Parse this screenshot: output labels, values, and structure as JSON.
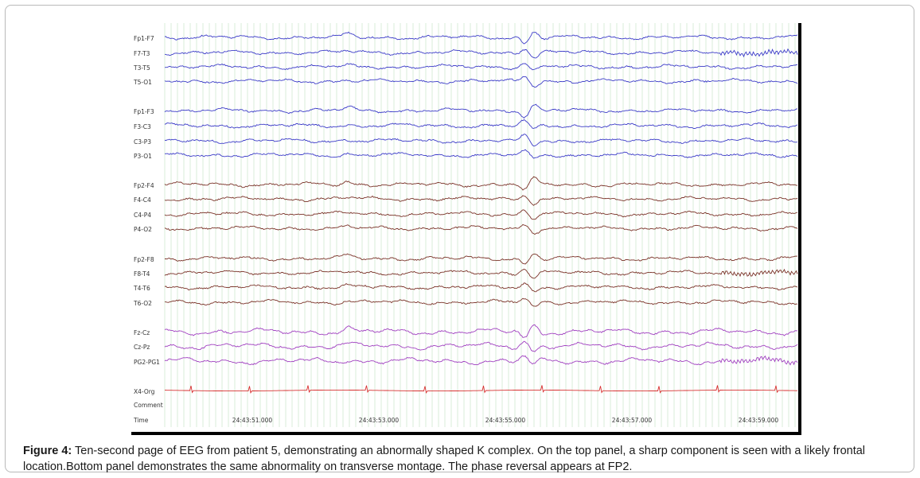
{
  "figure": {
    "caption_lead": "Figure 4:",
    "caption_text": " Ten-second page of EEG from patient 5, demonstrating an abnormally shaped K complex. On the top panel, a sharp component is seen with a likely frontal location.Bottom panel demonstrates the same abnormality on transverse montage. The phase reversal appears at FP2."
  },
  "eeg": {
    "channels": [
      {
        "label": "Fp1-F7",
        "color": "#3c3cc8",
        "group": 1
      },
      {
        "label": "F7-T3",
        "color": "#3c3cc8",
        "group": 1
      },
      {
        "label": "T3-T5",
        "color": "#3c3cc8",
        "group": 1
      },
      {
        "label": "T5-O1",
        "color": "#3c3cc8",
        "group": 1
      },
      {
        "label": "Fp1-F3",
        "color": "#3c3cc8",
        "group": 2
      },
      {
        "label": "F3-C3",
        "color": "#3c3cc8",
        "group": 2
      },
      {
        "label": "C3-P3",
        "color": "#3c3cc8",
        "group": 2
      },
      {
        "label": "P3-O1",
        "color": "#3c3cc8",
        "group": 2
      },
      {
        "label": "Fp2-F4",
        "color": "#7a3328",
        "group": 3
      },
      {
        "label": "F4-C4",
        "color": "#7a3328",
        "group": 3
      },
      {
        "label": "C4-P4",
        "color": "#7a3328",
        "group": 3
      },
      {
        "label": "P4-O2",
        "color": "#7a3328",
        "group": 3
      },
      {
        "label": "Fp2-F8",
        "color": "#7a3328",
        "group": 4
      },
      {
        "label": "F8-T4",
        "color": "#7a3328",
        "group": 4
      },
      {
        "label": "T4-T6",
        "color": "#7a3328",
        "group": 4
      },
      {
        "label": "T6-O2",
        "color": "#7a3328",
        "group": 4
      },
      {
        "label": "Fz-Cz",
        "color": "#a040c0",
        "group": 5
      },
      {
        "label": "Cz-Pz",
        "color": "#a040c0",
        "group": 5
      },
      {
        "label": "PG2-PG1",
        "color": "#a040c0",
        "group": 5
      },
      {
        "label": "X4-Org",
        "color": "#d83030",
        "group": 6
      }
    ],
    "extra_labels": [
      "Comment",
      "Time"
    ],
    "time_labels": [
      "24:43:51.000",
      "24:43:53.000",
      "24:43:55.000",
      "24:43:57.000",
      "24:43:59.000"
    ],
    "grid_color": "#c9e4c9",
    "background_color": "#ffffff"
  }
}
